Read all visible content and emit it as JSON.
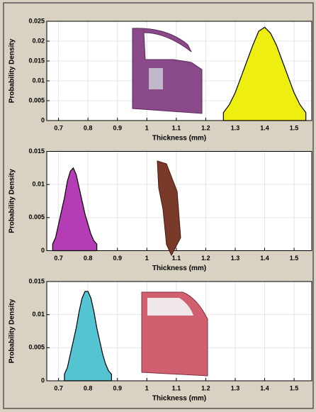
{
  "chart_data": [
    {
      "type": "area",
      "ylabel": "Probability Density",
      "xlabel": "Thickness (mm)",
      "color": "#eeee10",
      "x": [
        1.26,
        1.28,
        1.3,
        1.32,
        1.34,
        1.36,
        1.38,
        1.4,
        1.42,
        1.44,
        1.46,
        1.48,
        1.5,
        1.52,
        1.54
      ],
      "values": [
        0.002,
        0.004,
        0.007,
        0.011,
        0.015,
        0.019,
        0.0225,
        0.0235,
        0.022,
        0.019,
        0.015,
        0.011,
        0.007,
        0.004,
        0.002
      ],
      "xlim": [
        0.66,
        1.56
      ],
      "ylim": [
        0,
        0.025
      ],
      "xticks": [
        0.7,
        0.8,
        0.9,
        1,
        1.1,
        1.2,
        1.3,
        1.4,
        1.5
      ],
      "yticks": [
        0,
        0.005,
        0.01,
        0.015,
        0.02,
        0.025
      ]
    },
    {
      "type": "area",
      "ylabel": "Probability Density",
      "xlabel": "Thickness (mm)",
      "color": "#b43cb4",
      "x": [
        0.68,
        0.69,
        0.7,
        0.71,
        0.72,
        0.73,
        0.74,
        0.75,
        0.76,
        0.77,
        0.78,
        0.79,
        0.8,
        0.81,
        0.82,
        0.83
      ],
      "values": [
        0.001,
        0.002,
        0.004,
        0.006,
        0.008,
        0.0105,
        0.012,
        0.0125,
        0.0115,
        0.0095,
        0.0075,
        0.0055,
        0.004,
        0.0025,
        0.0015,
        0.001
      ],
      "xlim": [
        0.66,
        1.56
      ],
      "ylim": [
        0,
        0.015
      ],
      "xticks": [
        0.7,
        0.8,
        0.9,
        1,
        1.1,
        1.2,
        1.3,
        1.4,
        1.5
      ],
      "yticks": [
        0,
        0.005,
        0.01,
        0.015
      ]
    },
    {
      "type": "area",
      "ylabel": "Probability Density",
      "xlabel": "Thickness (mm)",
      "color": "#54c4d2",
      "x": [
        0.72,
        0.73,
        0.74,
        0.75,
        0.76,
        0.77,
        0.78,
        0.79,
        0.8,
        0.81,
        0.82,
        0.83,
        0.84,
        0.85,
        0.86,
        0.87,
        0.88
      ],
      "values": [
        0.001,
        0.002,
        0.004,
        0.006,
        0.008,
        0.0105,
        0.0125,
        0.0135,
        0.0135,
        0.0125,
        0.0105,
        0.008,
        0.006,
        0.004,
        0.0025,
        0.0015,
        0.001
      ],
      "xlim": [
        0.66,
        1.56
      ],
      "ylim": [
        0,
        0.015
      ],
      "xticks": [
        0.7,
        0.8,
        0.9,
        1,
        1.1,
        1.2,
        1.3,
        1.4,
        1.5
      ],
      "yticks": [
        0,
        0.005,
        0.01,
        0.015
      ]
    }
  ]
}
